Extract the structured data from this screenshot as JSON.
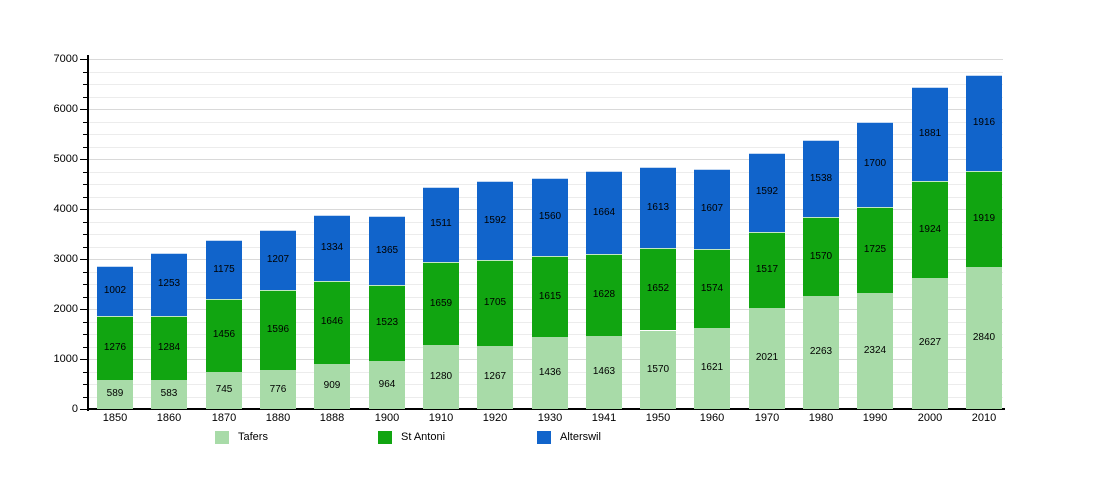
{
  "chart_data": {
    "type": "bar",
    "stacked": true,
    "title": "",
    "xlabel": "",
    "ylabel": "",
    "categories": [
      "1850",
      "1860",
      "1870",
      "1880",
      "1888",
      "1900",
      "1910",
      "1920",
      "1930",
      "1941",
      "1950",
      "1960",
      "1970",
      "1980",
      "1990",
      "2000",
      "2010"
    ],
    "series": [
      {
        "name": "Tafers",
        "color": "#a8dba8",
        "values": [
          589,
          583,
          745,
          776,
          909,
          964,
          1280,
          1267,
          1436,
          1463,
          1570,
          1621,
          2021,
          2263,
          2324,
          2627,
          2840
        ]
      },
      {
        "name": "St Antoni",
        "color": "#11a511",
        "values": [
          1276,
          1284,
          1456,
          1596,
          1646,
          1523,
          1659,
          1705,
          1615,
          1628,
          1652,
          1574,
          1517,
          1570,
          1725,
          1924,
          1919
        ]
      },
      {
        "name": "Alterswil",
        "color": "#1164cb",
        "values": [
          1002,
          1253,
          1175,
          1207,
          1334,
          1365,
          1511,
          1592,
          1560,
          1664,
          1613,
          1607,
          1592,
          1538,
          1700,
          1881,
          1916
        ]
      }
    ],
    "ylim": [
      0,
      7000
    ],
    "ytick_labels": [
      "0",
      "1000",
      "2000",
      "3000",
      "4000",
      "5000",
      "6000",
      "7000"
    ],
    "ytick_interval": 1000,
    "minor_grid_interval": 250,
    "grid": true,
    "legend_position": "bottom",
    "value_labels": "inside segments"
  },
  "colors": {
    "background": "#ffffff",
    "axis": "#000000",
    "gridline_minor": "#ececec",
    "gridline_major": "#d9d9d9",
    "label_text": "#000000"
  }
}
